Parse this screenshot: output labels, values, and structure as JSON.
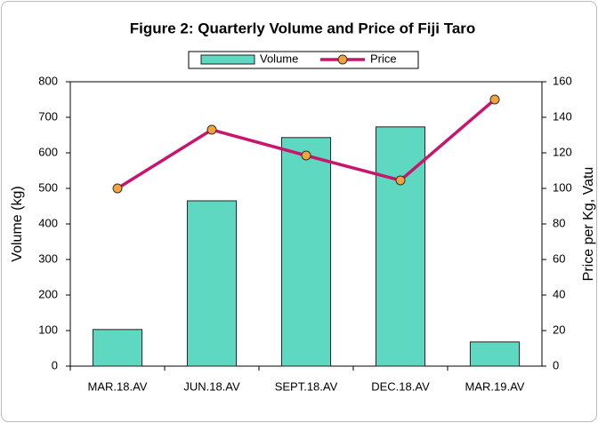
{
  "chart_data": {
    "type": "bar_line",
    "title": "Figure 2: Quarterly Volume and Price of Fiji Taro",
    "categories": [
      "MAR.18.AV",
      "JUN.18.AV",
      "SEPT.18.AV",
      "DEC.18.AV",
      "MAR.19.AV"
    ],
    "series": [
      {
        "name": "Volume",
        "type": "bar",
        "color": "#5fd8c1",
        "values": [
          103,
          465,
          643,
          673,
          68
        ]
      },
      {
        "name": "Price",
        "type": "line",
        "axis": "y2",
        "color": "#c8166f",
        "marker_color": "#f4a23c",
        "values": [
          100,
          133,
          118.5,
          104.5,
          150
        ]
      }
    ],
    "ylabel": "Volume (kg)",
    "y2label": "Price per Kg, Vatu",
    "ylim": [
      0,
      800
    ],
    "yticks": [
      0,
      100,
      200,
      300,
      400,
      500,
      600,
      700,
      800
    ],
    "y2lim": [
      0,
      160
    ],
    "y2ticks": [
      0,
      20,
      40,
      60,
      80,
      100,
      120,
      140,
      160
    ],
    "legend": "top"
  }
}
